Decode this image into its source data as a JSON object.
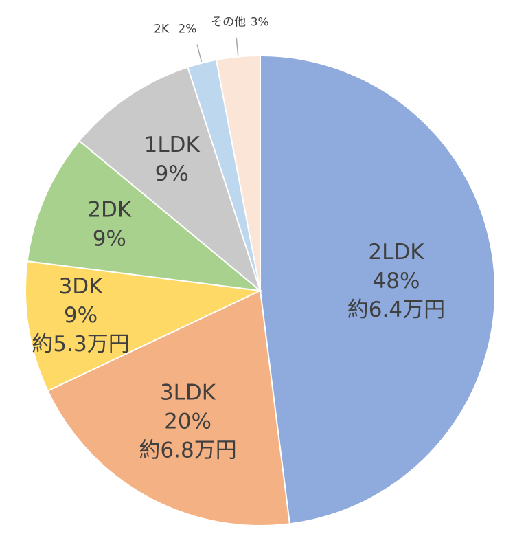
{
  "chart_data": {
    "type": "pie",
    "start_angle_deg": 0,
    "direction": "clockwise",
    "slices": [
      {
        "category": "2LDK",
        "percent": 48,
        "value_label": "48%",
        "price": "約6.4万円",
        "color": "#8faadc"
      },
      {
        "category": "3LDK",
        "percent": 20,
        "value_label": "20%",
        "price": "約6.8万円",
        "color": "#f4b183"
      },
      {
        "category": "3DK",
        "percent": 9,
        "value_label": "9%",
        "price": "約5.3万円",
        "color": "#ffd966"
      },
      {
        "category": "2DK",
        "percent": 9,
        "value_label": "9%",
        "price": "",
        "color": "#a9d18e"
      },
      {
        "category": "1LDK",
        "percent": 9,
        "value_label": "9%",
        "price": "",
        "color": "#c9c9c9"
      },
      {
        "category": "2K",
        "percent": 2,
        "value_label": "2%",
        "price": "",
        "color": "#bdd7ee"
      },
      {
        "category": "その他",
        "percent": 3,
        "value_label": "3%",
        "price": "",
        "color": "#fbe5d6"
      }
    ],
    "slice_border_color": "#ffffff",
    "label_color": "#404040"
  }
}
